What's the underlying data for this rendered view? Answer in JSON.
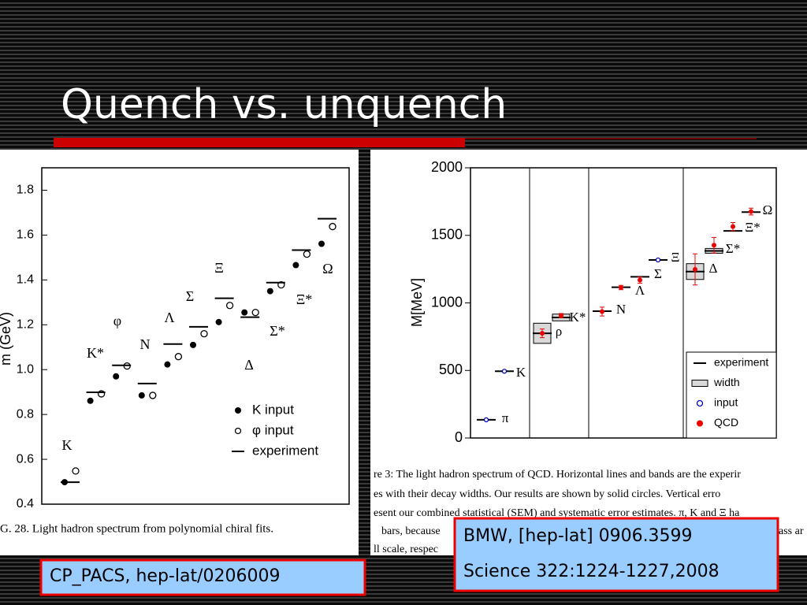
{
  "title": "Quench vs. unquench",
  "chart_data": [
    {
      "type": "spectrum",
      "caption": "G. 28. Light hadron spectrum from polynomial chiral fits.",
      "ylabel": "m (GeV)",
      "categories": [
        "K",
        "K*",
        "φ",
        "N",
        "Λ",
        "Σ",
        "Ξ",
        "Δ",
        "Σ*",
        "Ξ*",
        "Ω"
      ],
      "ylim": [
        0.4,
        1.9
      ],
      "yticks": [
        0.4,
        0.6,
        0.8,
        {
          "value": 1,
          "label": "1.0"
        },
        1.2,
        1.4,
        1.6,
        1.8
      ],
      "legend": "lower right",
      "series": [
        {
          "name": "K input",
          "marker": "dot",
          "color": "#000000",
          "values": [
            0.498,
            0.861,
            0.97,
            0.885,
            1.023,
            1.11,
            1.212,
            1.255,
            1.35,
            1.466,
            1.561
          ]
        },
        {
          "name": "φ input",
          "marker": "circle",
          "color": "#000000",
          "values": [
            0.548,
            0.892,
            1.016,
            0.885,
            1.058,
            1.16,
            1.286,
            1.255,
            1.378,
            1.515,
            1.638
          ]
        },
        {
          "name": "experiment",
          "marker": "line",
          "color": "#000000",
          "values": [
            0.498,
            0.899,
            1.019,
            0.938,
            1.114,
            1.191,
            1.318,
            1.234,
            1.388,
            1.533,
            1.673
          ]
        }
      ]
    },
    {
      "type": "spectrum",
      "caption": [
        "re 3: The light hadron spectrum of QCD. Horizontal lines and bands are the experir",
        "es with their decay widths.  Our results are shown by solid circles.  Vertical erro",
        "esent our combined statistical (SEM) and systematic error estimates. π, K and Ξ ha",
        "bars, because",
        "ass ar",
        "ll scale, respec"
      ],
      "ylabel": "M[MeV]",
      "categories": [
        "π",
        "K",
        "ρ",
        "K*",
        "N",
        "Λ",
        "Σ",
        "Ξ",
        "Δ",
        "Σ*",
        "Ξ*",
        "Ω"
      ],
      "ylim": [
        0,
        2000
      ],
      "yticks": [
        0,
        500,
        1000,
        1500,
        2000
      ],
      "legend": "lower right",
      "series": [
        {
          "name": "experiment",
          "marker": "line",
          "color": "#000000",
          "values": [
            135,
            494,
            775,
            892,
            939,
            1116,
            1193,
            1318,
            1232,
            1385,
            1533,
            1672
          ]
        },
        {
          "name": "width",
          "marker": "box",
          "color": "#d9d9d9",
          "values": [
            null,
            null,
            149,
            50,
            null,
            null,
            null,
            null,
            117,
            36,
            null,
            null
          ]
        },
        {
          "name": "input",
          "marker": "circle",
          "color": "#0000cc",
          "values": [
            135,
            494,
            null,
            null,
            null,
            null,
            null,
            1318,
            null,
            null,
            null,
            null
          ]
        },
        {
          "name": "QCD",
          "marker": "dot",
          "color": "#ee0000",
          "values": [
            null,
            null,
            775,
            906,
            936,
            1114,
            1169,
            null,
            1248,
            1427,
            1565,
            1676
          ],
          "errors": [
            null,
            null,
            32,
            15,
            33,
            16,
            23,
            null,
            115,
            58,
            30,
            25
          ]
        }
      ]
    }
  ],
  "citations": [
    [
      "CP_PACS, hep-lat/0206009"
    ],
    [
      "BMW, [hep-lat] 0906.3599",
      "Science 322:1224-1227,2008"
    ]
  ]
}
